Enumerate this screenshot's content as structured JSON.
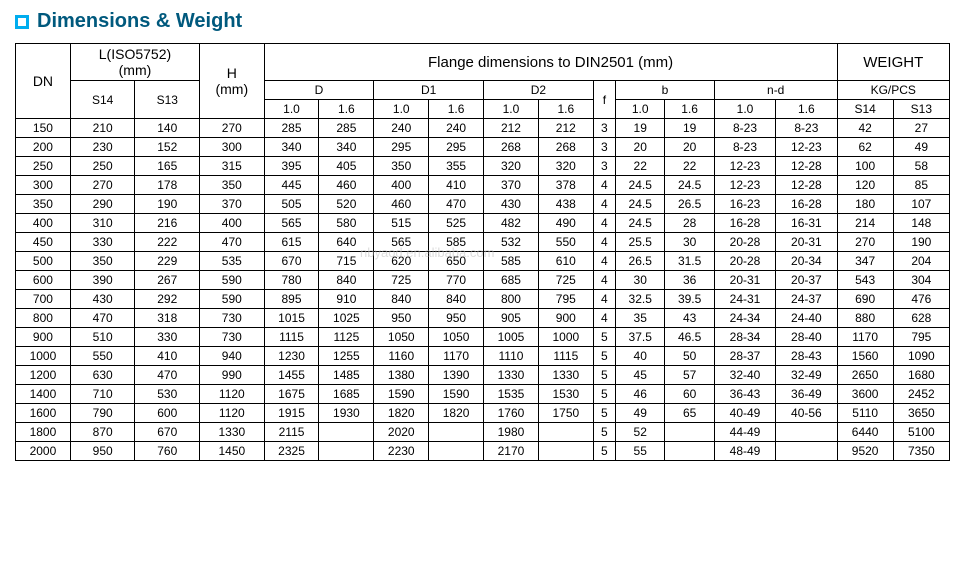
{
  "title": "Dimensions & Weight",
  "watermark": "nbyaod.en.alibaba.com",
  "headers": {
    "dn": "DN",
    "l": "L(ISO5752)",
    "l_unit": "(mm)",
    "h": "H",
    "h_unit": "(mm)",
    "flange": "Flange dimensions to DIN2501    (mm)",
    "weight": "WEIGHT",
    "d": "D",
    "d1": "D1",
    "d2": "D2",
    "f": "f",
    "b": "b",
    "nd": "n-d",
    "kgpcs": "KG/PCS",
    "s14": "S14",
    "s13": "S13",
    "p10": "1.0",
    "p16": "1.6"
  },
  "rows": [
    {
      "dn": "150",
      "s14": "210",
      "s13": "140",
      "h": "270",
      "d10": "285",
      "d16": "285",
      "d110": "240",
      "d116": "240",
      "d210": "212",
      "d216": "212",
      "f": "3",
      "b10": "19",
      "b16": "19",
      "nd10": "8-23",
      "nd16": "8-23",
      "w14": "42",
      "w13": "27"
    },
    {
      "dn": "200",
      "s14": "230",
      "s13": "152",
      "h": "300",
      "d10": "340",
      "d16": "340",
      "d110": "295",
      "d116": "295",
      "d210": "268",
      "d216": "268",
      "f": "3",
      "b10": "20",
      "b16": "20",
      "nd10": "8-23",
      "nd16": "12-23",
      "w14": "62",
      "w13": "49"
    },
    {
      "dn": "250",
      "s14": "250",
      "s13": "165",
      "h": "315",
      "d10": "395",
      "d16": "405",
      "d110": "350",
      "d116": "355",
      "d210": "320",
      "d216": "320",
      "f": "3",
      "b10": "22",
      "b16": "22",
      "nd10": "12-23",
      "nd16": "12-28",
      "w14": "100",
      "w13": "58"
    },
    {
      "dn": "300",
      "s14": "270",
      "s13": "178",
      "h": "350",
      "d10": "445",
      "d16": "460",
      "d110": "400",
      "d116": "410",
      "d210": "370",
      "d216": "378",
      "f": "4",
      "b10": "24.5",
      "b16": "24.5",
      "nd10": "12-23",
      "nd16": "12-28",
      "w14": "120",
      "w13": "85"
    },
    {
      "dn": "350",
      "s14": "290",
      "s13": "190",
      "h": "370",
      "d10": "505",
      "d16": "520",
      "d110": "460",
      "d116": "470",
      "d210": "430",
      "d216": "438",
      "f": "4",
      "b10": "24.5",
      "b16": "26.5",
      "nd10": "16-23",
      "nd16": "16-28",
      "w14": "180",
      "w13": "107"
    },
    {
      "dn": "400",
      "s14": "310",
      "s13": "216",
      "h": "400",
      "d10": "565",
      "d16": "580",
      "d110": "515",
      "d116": "525",
      "d210": "482",
      "d216": "490",
      "f": "4",
      "b10": "24.5",
      "b16": "28",
      "nd10": "16-28",
      "nd16": "16-31",
      "w14": "214",
      "w13": "148"
    },
    {
      "dn": "450",
      "s14": "330",
      "s13": "222",
      "h": "470",
      "d10": "615",
      "d16": "640",
      "d110": "565",
      "d116": "585",
      "d210": "532",
      "d216": "550",
      "f": "4",
      "b10": "25.5",
      "b16": "30",
      "nd10": "20-28",
      "nd16": "20-31",
      "w14": "270",
      "w13": "190"
    },
    {
      "dn": "500",
      "s14": "350",
      "s13": "229",
      "h": "535",
      "d10": "670",
      "d16": "715",
      "d110": "620",
      "d116": "650",
      "d210": "585",
      "d216": "610",
      "f": "4",
      "b10": "26.5",
      "b16": "31.5",
      "nd10": "20-28",
      "nd16": "20-34",
      "w14": "347",
      "w13": "204"
    },
    {
      "dn": "600",
      "s14": "390",
      "s13": "267",
      "h": "590",
      "d10": "780",
      "d16": "840",
      "d110": "725",
      "d116": "770",
      "d210": "685",
      "d216": "725",
      "f": "4",
      "b10": "30",
      "b16": "36",
      "nd10": "20-31",
      "nd16": "20-37",
      "w14": "543",
      "w13": "304"
    },
    {
      "dn": "700",
      "s14": "430",
      "s13": "292",
      "h": "590",
      "d10": "895",
      "d16": "910",
      "d110": "840",
      "d116": "840",
      "d210": "800",
      "d216": "795",
      "f": "4",
      "b10": "32.5",
      "b16": "39.5",
      "nd10": "24-31",
      "nd16": "24-37",
      "w14": "690",
      "w13": "476"
    },
    {
      "dn": "800",
      "s14": "470",
      "s13": "318",
      "h": "730",
      "d10": "1015",
      "d16": "1025",
      "d110": "950",
      "d116": "950",
      "d210": "905",
      "d216": "900",
      "f": "4",
      "b10": "35",
      "b16": "43",
      "nd10": "24-34",
      "nd16": "24-40",
      "w14": "880",
      "w13": "628"
    },
    {
      "dn": "900",
      "s14": "510",
      "s13": "330",
      "h": "730",
      "d10": "1115",
      "d16": "1125",
      "d110": "1050",
      "d116": "1050",
      "d210": "1005",
      "d216": "1000",
      "f": "5",
      "b10": "37.5",
      "b16": "46.5",
      "nd10": "28-34",
      "nd16": "28-40",
      "w14": "1170",
      "w13": "795"
    },
    {
      "dn": "1000",
      "s14": "550",
      "s13": "410",
      "h": "940",
      "d10": "1230",
      "d16": "1255",
      "d110": "1160",
      "d116": "1170",
      "d210": "1110",
      "d216": "1115",
      "f": "5",
      "b10": "40",
      "b16": "50",
      "nd10": "28-37",
      "nd16": "28-43",
      "w14": "1560",
      "w13": "1090"
    },
    {
      "dn": "1200",
      "s14": "630",
      "s13": "470",
      "h": "990",
      "d10": "1455",
      "d16": "1485",
      "d110": "1380",
      "d116": "1390",
      "d210": "1330",
      "d216": "1330",
      "f": "5",
      "b10": "45",
      "b16": "57",
      "nd10": "32-40",
      "nd16": "32-49",
      "w14": "2650",
      "w13": "1680"
    },
    {
      "dn": "1400",
      "s14": "710",
      "s13": "530",
      "h": "1120",
      "d10": "1675",
      "d16": "1685",
      "d110": "1590",
      "d116": "1590",
      "d210": "1535",
      "d216": "1530",
      "f": "5",
      "b10": "46",
      "b16": "60",
      "nd10": "36-43",
      "nd16": "36-49",
      "w14": "3600",
      "w13": "2452"
    },
    {
      "dn": "1600",
      "s14": "790",
      "s13": "600",
      "h": "1120",
      "d10": "1915",
      "d16": "1930",
      "d110": "1820",
      "d116": "1820",
      "d210": "1760",
      "d216": "1750",
      "f": "5",
      "b10": "49",
      "b16": "65",
      "nd10": "40-49",
      "nd16": "40-56",
      "w14": "5110",
      "w13": "3650"
    },
    {
      "dn": "1800",
      "s14": "870",
      "s13": "670",
      "h": "1330",
      "d10": "2115",
      "d16": "",
      "d110": "2020",
      "d116": "",
      "d210": "1980",
      "d216": "",
      "f": "5",
      "b10": "52",
      "b16": "",
      "nd10": "44-49",
      "nd16": "",
      "w14": "6440",
      "w13": "5100"
    },
    {
      "dn": "2000",
      "s14": "950",
      "s13": "760",
      "h": "1450",
      "d10": "2325",
      "d16": "",
      "d110": "2230",
      "d116": "",
      "d210": "2170",
      "d216": "",
      "f": "5",
      "b10": "55",
      "b16": "",
      "nd10": "48-49",
      "nd16": "",
      "w14": "9520",
      "w13": "7350"
    }
  ],
  "style": {
    "title_color": "#00597d",
    "accent": "#00adef",
    "border": "#000000",
    "font_size_body": 12,
    "font_size_title": 20
  }
}
